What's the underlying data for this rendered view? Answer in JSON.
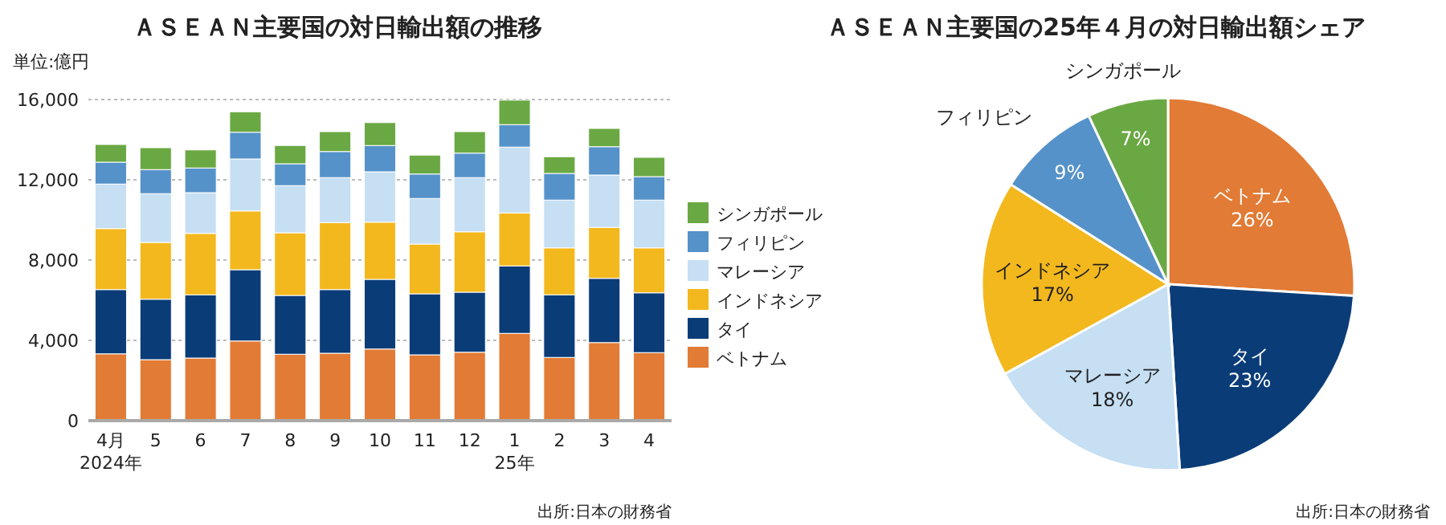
{
  "chart_data": [
    {
      "type": "bar",
      "stacked": true,
      "title": "ＡＳＥＡＮ主要国の対日輸出額の推移",
      "ylabel": "単位:億円",
      "categories": [
        "4月\n2024年",
        "5",
        "6",
        "7",
        "8",
        "9",
        "10",
        "11",
        "12",
        "1\n25年",
        "2",
        "3",
        "4"
      ],
      "series": [
        {
          "name": "ベトナム",
          "color": "#e27b35",
          "values": [
            3330,
            3040,
            3120,
            3970,
            3310,
            3360,
            3570,
            3280,
            3410,
            4350,
            3150,
            3890,
            3390
          ]
        },
        {
          "name": "タイ",
          "color": "#0a3c78",
          "values": [
            3200,
            3010,
            3150,
            3550,
            2930,
            3170,
            3470,
            3040,
            2990,
            3360,
            3120,
            3200,
            2980
          ]
        },
        {
          "name": "インドネシア",
          "color": "#f3b81e",
          "values": [
            3040,
            2830,
            3060,
            2930,
            3120,
            3340,
            2850,
            2480,
            3010,
            2640,
            2340,
            2540,
            2240
          ]
        },
        {
          "name": "マレーシア",
          "color": "#c6dff3",
          "values": [
            2220,
            2430,
            2030,
            2590,
            2350,
            2240,
            2510,
            2270,
            2700,
            3280,
            2380,
            2610,
            2380
          ]
        },
        {
          "name": "フィリピン",
          "color": "#5592c9",
          "values": [
            1090,
            1200,
            1230,
            1330,
            1090,
            1300,
            1310,
            1220,
            1220,
            1120,
            1330,
            1410,
            1170
          ]
        },
        {
          "name": "シンガポール",
          "color": "#6aa843",
          "values": [
            880,
            1090,
            900,
            1020,
            910,
            990,
            1140,
            940,
            1070,
            1220,
            830,
            910,
            960
          ]
        }
      ],
      "ylim": [
        0,
        16000
      ],
      "yticks": [
        0,
        {
          "value": 4000,
          "label": "4,000"
        },
        {
          "value": 8000,
          "label": "8,000"
        },
        {
          "value": 12000,
          "label": "12,000"
        },
        {
          "value": 16000,
          "label": "16,000"
        }
      ],
      "grid": "y",
      "legend": "right",
      "annotations": [
        "出所:日本の財務省"
      ]
    },
    {
      "type": "pie",
      "title": "ＡＳＥＡＮ主要国の25年４月の対日輸出額シェア",
      "categories": [
        "ベトナム",
        "タイ",
        "マレーシア",
        "インドネシア",
        "フィリピン",
        "シンガポール"
      ],
      "values": [
        26,
        23,
        18,
        17,
        9,
        7
      ],
      "colors": [
        "#e27b35",
        "#0a3c78",
        "#c6dff3",
        "#f3b81e",
        "#5592c9",
        "#6aa843"
      ],
      "value_labels": [
        "26%",
        "23%",
        "18%",
        "17%",
        "9%",
        "7%"
      ],
      "annotations": [
        "出所:日本の財務省"
      ]
    }
  ]
}
